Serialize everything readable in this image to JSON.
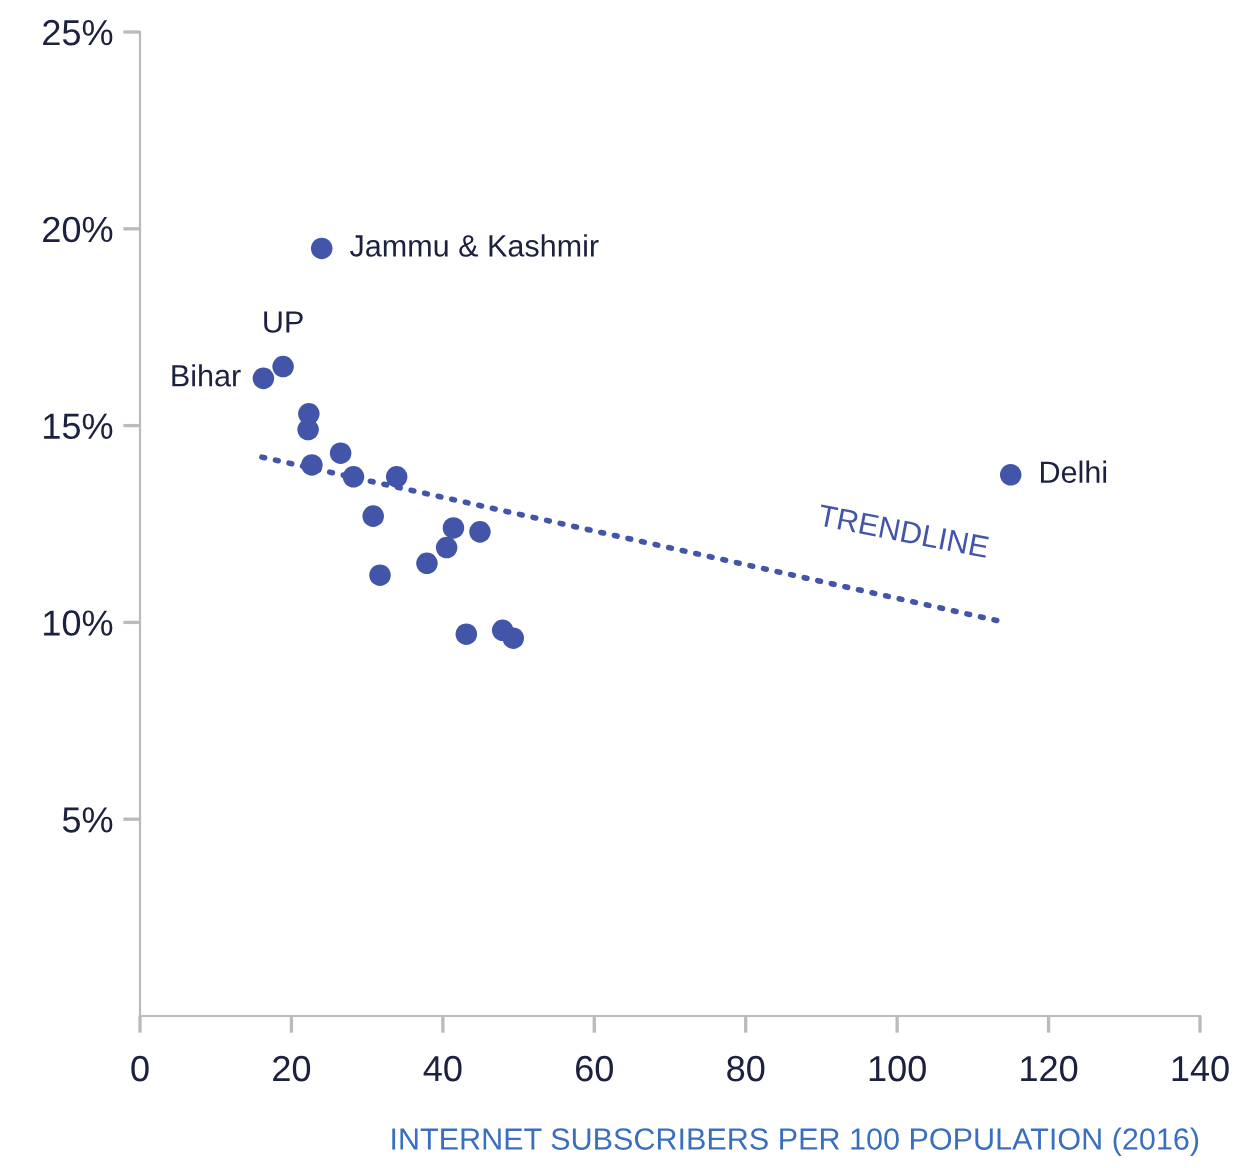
{
  "chart_data": {
    "type": "scatter",
    "xlabel": "INTERNET SUBSCRIBERS PER 100 POPULATION (2016)",
    "xlim": [
      0,
      140
    ],
    "xticks": [
      0,
      20,
      40,
      60,
      80,
      100,
      120,
      140
    ],
    "ylim": [
      0,
      25
    ],
    "yticks": [
      {
        "value": 5,
        "label": "5%"
      },
      {
        "value": 10,
        "label": "10%"
      },
      {
        "value": 15,
        "label": "15%"
      },
      {
        "value": 20,
        "label": "20%"
      },
      {
        "value": 25,
        "label": "25%"
      }
    ],
    "grid": false,
    "legend": false,
    "series": [
      {
        "color": "#4355a8",
        "marker": "circle",
        "x": [
          16.3,
          18.9,
          24.0,
          22.3,
          22.2,
          22.7,
          26.5,
          28.2,
          33.9,
          30.8,
          31.7,
          37.9,
          40.5,
          41.4,
          44.9,
          43.1,
          47.9,
          49.3,
          115.0
        ],
        "values": [
          16.2,
          16.5,
          19.5,
          15.3,
          14.9,
          14.0,
          14.3,
          13.7,
          13.7,
          12.7,
          11.2,
          11.5,
          11.9,
          12.4,
          12.3,
          9.7,
          9.8,
          9.6,
          13.75
        ]
      },
      {
        "type": "line",
        "color": "#4355a8",
        "line_style": "dotted",
        "marker": "none",
        "x": [
          16.1,
          114.3
        ],
        "values": [
          14.2,
          10.0
        ]
      }
    ],
    "annotations": [
      {
        "text": "Bihar",
        "x": 16.3,
        "y": 16.2
      },
      {
        "text": "UP",
        "x": 18.9,
        "y": 16.5
      },
      {
        "text": "Jammu & Kashmir",
        "x": 24.0,
        "y": 19.5
      },
      {
        "text": "Delhi",
        "x": 115.0,
        "y": 13.75
      },
      "TRENDLINE"
    ]
  }
}
